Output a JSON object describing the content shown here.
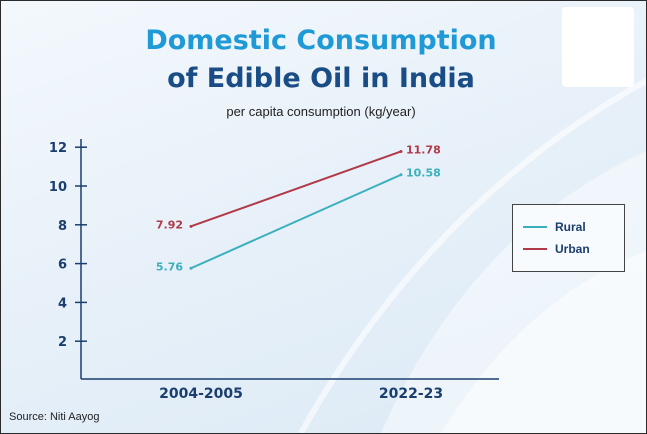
{
  "title_line1": "Domestic Consumption",
  "title_line2": "of Edible Oil in India",
  "subtitle": "per capita consumption (kg/year)",
  "source": "Source: Niti Aayog",
  "colors": {
    "rural": "#3ab0bd",
    "urban": "#b03a48",
    "title_blue": "#1f9ad6",
    "title_navy": "#1a4d86",
    "axis": "#1a3e6e"
  },
  "chart_data": {
    "type": "line",
    "title": "Domestic Consumption of Edible Oil in India",
    "subtitle": "per capita consumption (kg/year)",
    "categories": [
      "2004-2005",
      "2022-23"
    ],
    "yticks": [
      2,
      4,
      6,
      8,
      10,
      12
    ],
    "ylim": [
      0,
      12
    ],
    "grid": false,
    "legend_position": "right",
    "series": [
      {
        "name": "Rural",
        "values": [
          5.76,
          10.58
        ],
        "labels": [
          "5.76",
          "10.58"
        ],
        "color": "#3ab0bd"
      },
      {
        "name": "Urban",
        "values": [
          7.92,
          11.78
        ],
        "labels": [
          "7.92",
          "11.78"
        ],
        "color": "#b03a48"
      }
    ]
  }
}
